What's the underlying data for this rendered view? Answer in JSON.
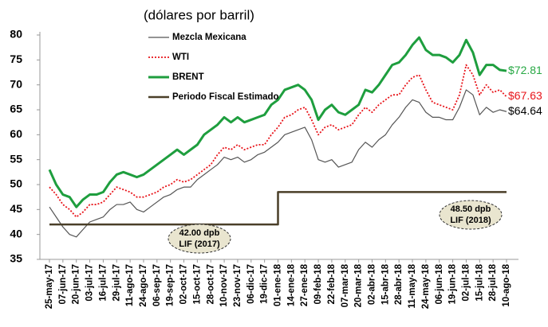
{
  "chart_data": {
    "type": "line",
    "title": "(dólares por barril)",
    "categories": [
      "25-may-17",
      null,
      "07-jun-17",
      null,
      "20-jun-17",
      null,
      "03-jul-17",
      null,
      "16-jul-17",
      null,
      "29-jul-17",
      null,
      "11-ago-17",
      null,
      "24-ago-17",
      null,
      "06-sep-17",
      null,
      "19-sep-17",
      null,
      "02-oct-17",
      null,
      "15-oct-17",
      null,
      "28-oct-17",
      null,
      "10-nov-17",
      null,
      "23-nov-17",
      null,
      "06-dic-17",
      null,
      "19-dic-17",
      null,
      "01-ene-18",
      null,
      "14-ene-18",
      null,
      "27-ene-18",
      null,
      "09-feb-18",
      null,
      "22-feb-18",
      null,
      "07-mar-18",
      null,
      "20-mar-18",
      null,
      "02-abr-18",
      null,
      "15-abr-18",
      null,
      "28-abr-18",
      null,
      "11-may-18",
      null,
      "24-may-18",
      null,
      "06-jun-18",
      null,
      "19-jun-18",
      null,
      "02-jul-18",
      null,
      "15-jul-18",
      null,
      "28-jul-18",
      null,
      "10-ago-18"
    ],
    "series": [
      {
        "name": "Mezcla Mexicana",
        "color": "#555555",
        "style": "solid",
        "width": 1.2,
        "values": [
          45.5,
          43.5,
          41.5,
          40,
          39.5,
          41,
          42.5,
          43,
          43.5,
          45,
          46,
          46,
          46.5,
          45,
          44.5,
          45.5,
          46.5,
          47.5,
          48,
          49,
          49.5,
          49.5,
          51,
          52,
          53,
          54,
          55.5,
          55,
          55.5,
          54.5,
          55,
          56,
          56.5,
          57.5,
          58.5,
          60,
          60.5,
          61,
          61.5,
          59,
          55,
          54.5,
          55,
          53.5,
          54,
          54.5,
          57,
          58.5,
          57.5,
          59,
          60,
          62,
          63.5,
          65.5,
          67,
          66.5,
          64.5,
          63.5,
          63.5,
          63,
          63,
          65.5,
          69,
          68,
          64,
          65.5,
          64.5,
          65,
          64.64
        ],
        "value_labels": [
          null,
          null,
          null,
          null,
          null,
          null,
          null,
          null,
          null,
          null,
          null,
          null,
          null,
          null,
          null,
          null,
          null,
          null,
          null,
          null,
          null,
          null,
          null,
          null,
          null,
          null,
          null,
          null,
          null,
          null,
          null,
          null,
          null,
          null,
          null,
          null,
          null,
          null,
          null,
          null,
          null,
          null,
          null,
          null,
          null,
          null,
          null,
          null,
          null,
          null,
          null,
          null,
          null,
          null,
          null,
          null,
          null,
          null,
          null,
          null,
          null,
          null,
          null,
          null,
          null,
          null,
          null,
          null,
          "$64.64"
        ],
        "label_color": "#000000"
      },
      {
        "name": "WTI",
        "color": "#e8141a",
        "style": "dotted",
        "width": 1.8,
        "values": [
          49.5,
          48,
          46,
          45,
          43.5,
          44.5,
          46,
          46,
          46.5,
          48,
          49.5,
          49,
          48.5,
          47.5,
          47.5,
          48,
          48.5,
          49.5,
          50,
          51,
          50.5,
          51,
          52,
          53,
          54,
          56,
          57.5,
          57,
          58,
          57,
          57.5,
          58,
          58,
          60,
          61.5,
          63.5,
          64,
          65,
          65.5,
          63,
          60,
          61.5,
          62,
          61,
          61.5,
          62,
          64,
          65.5,
          64.5,
          66,
          67,
          68,
          68,
          70,
          71.5,
          72,
          69,
          66.5,
          66,
          65.5,
          65,
          68,
          74,
          72,
          68,
          70,
          68.5,
          69,
          67.63
        ],
        "value_labels": [
          null,
          null,
          null,
          null,
          null,
          null,
          null,
          null,
          null,
          null,
          null,
          null,
          null,
          null,
          null,
          null,
          null,
          null,
          null,
          null,
          null,
          null,
          null,
          null,
          null,
          null,
          null,
          null,
          null,
          null,
          null,
          null,
          null,
          null,
          null,
          null,
          null,
          null,
          null,
          null,
          null,
          null,
          null,
          null,
          null,
          null,
          null,
          null,
          null,
          null,
          null,
          null,
          null,
          null,
          null,
          null,
          null,
          null,
          null,
          null,
          null,
          null,
          null,
          null,
          null,
          null,
          null,
          null,
          "$67.63"
        ],
        "label_color": "#e8141a"
      },
      {
        "name": "BRENT",
        "color": "#1e9e3e",
        "style": "solid",
        "width": 3,
        "values": [
          53,
          50,
          48,
          47.5,
          45.5,
          47,
          48,
          48,
          48.5,
          50.5,
          52,
          52.5,
          52,
          51.5,
          52,
          53,
          54,
          55,
          56,
          57,
          56,
          57,
          58,
          60,
          61,
          62,
          63.5,
          62.5,
          63.5,
          62.5,
          63,
          63.5,
          64,
          66,
          67,
          69,
          69.5,
          70,
          69,
          67,
          63,
          65,
          66,
          64.5,
          64,
          65,
          66,
          69,
          68.5,
          70,
          72,
          74,
          74.5,
          76,
          78,
          79.5,
          77,
          76,
          76,
          75.5,
          74.5,
          76,
          79,
          76.5,
          72,
          74,
          74,
          73,
          72.81
        ],
        "value_labels": [
          null,
          null,
          null,
          null,
          null,
          null,
          null,
          null,
          null,
          null,
          null,
          null,
          null,
          null,
          null,
          null,
          null,
          null,
          null,
          null,
          null,
          null,
          null,
          null,
          null,
          null,
          null,
          null,
          null,
          null,
          null,
          null,
          null,
          null,
          null,
          null,
          null,
          null,
          null,
          null,
          null,
          null,
          null,
          null,
          null,
          null,
          null,
          null,
          null,
          null,
          null,
          null,
          null,
          null,
          null,
          null,
          null,
          null,
          null,
          null,
          null,
          null,
          null,
          null,
          null,
          null,
          null,
          null,
          "$72.81"
        ],
        "label_color": "#27a844"
      },
      {
        "name": "Periodo Fiscal Estimado",
        "color": "#4a3f28",
        "style": "step",
        "width": 2.5,
        "values": [
          42,
          42,
          42,
          42,
          42,
          42,
          42,
          42,
          42,
          42,
          42,
          42,
          42,
          42,
          42,
          42,
          42,
          42,
          42,
          42,
          42,
          42,
          42,
          42,
          42,
          42,
          42,
          42,
          42,
          42,
          42,
          42,
          42,
          42,
          48.5,
          48.5,
          48.5,
          48.5,
          48.5,
          48.5,
          48.5,
          48.5,
          48.5,
          48.5,
          48.5,
          48.5,
          48.5,
          48.5,
          48.5,
          48.5,
          48.5,
          48.5,
          48.5,
          48.5,
          48.5,
          48.5,
          48.5,
          48.5,
          48.5,
          48.5,
          48.5,
          48.5,
          48.5,
          48.5,
          48.5,
          48.5,
          48.5,
          48.5,
          48.5
        ]
      }
    ],
    "annotations": [
      {
        "lines": [
          "42.00 dpb",
          "LIF (2017)"
        ],
        "at": 16
      },
      {
        "lines": [
          "48.50 dpb",
          "LIF (2018)"
        ],
        "at": 65
      }
    ],
    "ylim": [
      35,
      80
    ],
    "yticks": [
      35,
      40,
      45,
      50,
      55,
      60,
      65,
      70,
      75,
      80
    ],
    "grid": false
  }
}
